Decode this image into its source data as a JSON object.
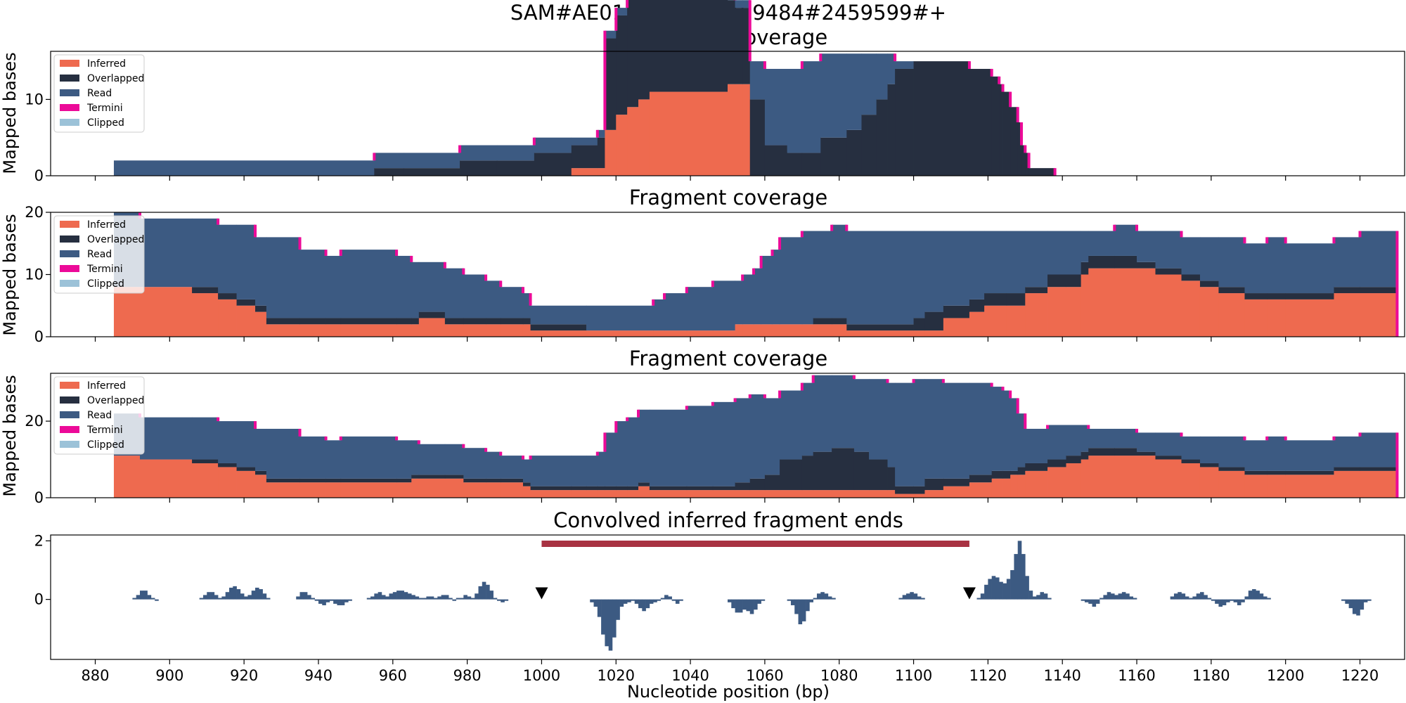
{
  "suptitle": "SAM#AE017334.2#2459484#2459599#+",
  "colors": {
    "inferred": "#ee6a4f",
    "overlapped": "#262f40",
    "read": "#3c5a82",
    "termini": "#ec0a98",
    "clipped": "#9cc2d8",
    "conv": "#3c5a82",
    "bar": "#a83242",
    "marker": "#000000"
  },
  "icons": {
    "marker": "down-triangle-marker"
  },
  "xaxis": {
    "label": "Nucleotide position (bp)",
    "range": [
      868,
      1232
    ],
    "ticks": [
      880,
      900,
      920,
      940,
      960,
      980,
      1000,
      1020,
      1040,
      1060,
      1080,
      1100,
      1120,
      1140,
      1160,
      1180,
      1200,
      1220
    ]
  },
  "chart_data": [
    {
      "type": "area",
      "title": "Fragment coverage",
      "ylabel": "Mapped bases",
      "ylim": [
        0,
        16.3
      ],
      "yticks": [
        0,
        10
      ],
      "legend": {
        "position": "top-left",
        "entries": [
          "Inferred",
          "Overlapped",
          "Read",
          "Termini",
          "Clipped"
        ]
      },
      "steps": [
        [
          885,
          0,
          0,
          2
        ],
        [
          955,
          0,
          1,
          2
        ],
        [
          963,
          0,
          1,
          2
        ],
        [
          978,
          0,
          2,
          2
        ],
        [
          988,
          0,
          2,
          2
        ],
        [
          998,
          0,
          3,
          2
        ],
        [
          1008,
          1,
          3,
          1
        ],
        [
          1015,
          1,
          4,
          1
        ],
        [
          1017,
          6,
          12,
          1
        ],
        [
          1020,
          8,
          13,
          1
        ],
        [
          1023,
          9,
          15,
          1
        ],
        [
          1026,
          10,
          14,
          2
        ],
        [
          1029,
          11,
          13,
          1
        ],
        [
          1050,
          12,
          11,
          1
        ],
        [
          1052,
          12,
          10,
          1
        ],
        [
          1054,
          12,
          10,
          1
        ],
        [
          1056,
          0,
          10,
          5
        ],
        [
          1060,
          0,
          4,
          10
        ],
        [
          1066,
          0,
          3,
          11
        ],
        [
          1070,
          0,
          3,
          12
        ],
        [
          1075,
          0,
          5,
          11
        ],
        [
          1082,
          0,
          6,
          10
        ],
        [
          1086,
          0,
          8,
          8
        ],
        [
          1090,
          0,
          10,
          6
        ],
        [
          1093,
          0,
          12,
          4
        ],
        [
          1095,
          0,
          14,
          1
        ],
        [
          1100,
          0,
          15,
          0
        ],
        [
          1115,
          0,
          14,
          0
        ],
        [
          1121,
          0,
          13,
          0
        ],
        [
          1123,
          0,
          12,
          0
        ],
        [
          1124,
          0,
          11,
          0
        ],
        [
          1126,
          0,
          9,
          0
        ],
        [
          1128,
          0,
          7,
          0
        ],
        [
          1129,
          0,
          4,
          0
        ],
        [
          1130,
          0,
          3,
          0
        ],
        [
          1131,
          0,
          1,
          0
        ],
        [
          1138,
          null,
          null,
          null
        ]
      ]
    },
    {
      "type": "area",
      "title": "Fragment coverage",
      "ylabel": "Mapped bases",
      "ylim": [
        0,
        20
      ],
      "yticks": [
        0,
        10,
        20
      ],
      "legend": {
        "position": "top-left",
        "entries": [
          "Inferred",
          "Overlapped",
          "Read",
          "Termini",
          "Clipped"
        ]
      },
      "steps": [
        [
          885,
          8,
          0,
          12
        ],
        [
          892,
          8,
          0,
          11
        ],
        [
          906,
          7,
          1,
          11
        ],
        [
          913,
          6,
          1,
          11
        ],
        [
          918,
          5,
          1,
          12
        ],
        [
          923,
          4,
          1,
          11
        ],
        [
          926,
          2,
          1,
          13
        ],
        [
          935,
          2,
          1,
          11
        ],
        [
          942,
          2,
          1,
          10
        ],
        [
          946,
          2,
          1,
          11
        ],
        [
          961,
          2,
          1,
          10
        ],
        [
          965,
          2,
          1,
          9
        ],
        [
          967,
          3,
          1,
          8
        ],
        [
          974,
          2,
          1,
          8
        ],
        [
          979,
          2,
          1,
          7
        ],
        [
          985,
          2,
          1,
          6
        ],
        [
          989,
          2,
          1,
          5
        ],
        [
          995,
          2,
          1,
          4
        ],
        [
          997,
          1,
          1,
          3
        ],
        [
          1012,
          1,
          0,
          4
        ],
        [
          1030,
          1,
          0,
          5
        ],
        [
          1033,
          1,
          0,
          6
        ],
        [
          1039,
          1,
          0,
          7
        ],
        [
          1046,
          1,
          0,
          8
        ],
        [
          1052,
          2,
          0,
          7
        ],
        [
          1054,
          2,
          0,
          8
        ],
        [
          1057,
          2,
          0,
          9
        ],
        [
          1059,
          2,
          0,
          11
        ],
        [
          1062,
          2,
          0,
          12
        ],
        [
          1064,
          2,
          0,
          14
        ],
        [
          1070,
          2,
          0,
          15
        ],
        [
          1073,
          2,
          1,
          14
        ],
        [
          1078,
          2,
          1,
          15
        ],
        [
          1082,
          1,
          1,
          15
        ],
        [
          1100,
          1,
          2,
          14
        ],
        [
          1103,
          1,
          3,
          13
        ],
        [
          1108,
          3,
          2,
          12
        ],
        [
          1115,
          4,
          2,
          11
        ],
        [
          1119,
          5,
          2,
          10
        ],
        [
          1125,
          5,
          2,
          10
        ],
        [
          1130,
          7,
          1,
          9
        ],
        [
          1136,
          8,
          2,
          7
        ],
        [
          1141,
          8,
          2,
          7
        ],
        [
          1145,
          10,
          2,
          5
        ],
        [
          1147,
          11,
          2,
          4
        ],
        [
          1154,
          11,
          2,
          5
        ],
        [
          1160,
          11,
          1,
          5
        ],
        [
          1165,
          10,
          1,
          6
        ],
        [
          1172,
          9,
          1,
          6
        ],
        [
          1177,
          8,
          1,
          7
        ],
        [
          1182,
          7,
          1,
          8
        ],
        [
          1189,
          6,
          1,
          8
        ],
        [
          1195,
          6,
          1,
          9
        ],
        [
          1200,
          6,
          1,
          8
        ],
        [
          1213,
          7,
          1,
          8
        ],
        [
          1220,
          7,
          1,
          9
        ],
        [
          1230,
          null,
          null,
          null
        ]
      ]
    },
    {
      "type": "area",
      "title": "Fragment coverage",
      "ylabel": "Mapped bases",
      "ylim": [
        0,
        32.5
      ],
      "yticks": [
        0,
        20
      ],
      "legend": {
        "position": "top-left",
        "entries": [
          "Inferred",
          "Overlapped",
          "Read",
          "Termini",
          "Clipped"
        ]
      },
      "steps": [
        [
          885,
          11,
          0,
          11
        ],
        [
          892,
          10,
          0,
          11
        ],
        [
          906,
          9,
          1,
          11
        ],
        [
          913,
          8,
          1,
          11
        ],
        [
          918,
          7,
          1,
          12
        ],
        [
          923,
          6,
          1,
          11
        ],
        [
          926,
          4,
          1,
          13
        ],
        [
          935,
          4,
          1,
          11
        ],
        [
          942,
          4,
          1,
          10
        ],
        [
          946,
          4,
          1,
          11
        ],
        [
          961,
          4,
          1,
          10
        ],
        [
          965,
          5,
          1,
          9
        ],
        [
          967,
          5,
          1,
          8
        ],
        [
          974,
          5,
          1,
          8
        ],
        [
          979,
          4,
          1,
          8
        ],
        [
          985,
          4,
          1,
          7
        ],
        [
          989,
          4,
          1,
          6
        ],
        [
          995,
          3,
          1,
          6
        ],
        [
          997,
          2,
          1,
          8
        ],
        [
          1008,
          2,
          1,
          8
        ],
        [
          1012,
          2,
          1,
          8
        ],
        [
          1015,
          2,
          1,
          9
        ],
        [
          1017,
          2,
          1,
          14
        ],
        [
          1020,
          2,
          1,
          17
        ],
        [
          1023,
          2,
          1,
          18
        ],
        [
          1026,
          3,
          1,
          19
        ],
        [
          1029,
          2,
          1,
          20
        ],
        [
          1039,
          2,
          1,
          21
        ],
        [
          1046,
          2,
          1,
          22
        ],
        [
          1052,
          2,
          2,
          22
        ],
        [
          1056,
          2,
          3,
          22
        ],
        [
          1060,
          2,
          4,
          20
        ],
        [
          1064,
          2,
          8,
          18
        ],
        [
          1070,
          2,
          9,
          19
        ],
        [
          1073,
          2,
          10,
          20
        ],
        [
          1078,
          2,
          11,
          19
        ],
        [
          1084,
          2,
          10,
          19
        ],
        [
          1088,
          2,
          8,
          21
        ],
        [
          1093,
          2,
          6,
          22
        ],
        [
          1095,
          1,
          2,
          27
        ],
        [
          1100,
          1,
          2,
          28
        ],
        [
          1103,
          2,
          3,
          26
        ],
        [
          1108,
          3,
          2,
          25
        ],
        [
          1115,
          4,
          2,
          24
        ],
        [
          1121,
          5,
          2,
          22
        ],
        [
          1124,
          5,
          2,
          21
        ],
        [
          1126,
          6,
          1,
          19
        ],
        [
          1128,
          6,
          2,
          14
        ],
        [
          1130,
          7,
          2,
          9
        ],
        [
          1136,
          8,
          2,
          9
        ],
        [
          1141,
          9,
          2,
          8
        ],
        [
          1145,
          10,
          2,
          7
        ],
        [
          1147,
          11,
          2,
          5
        ],
        [
          1154,
          11,
          2,
          5
        ],
        [
          1160,
          11,
          1,
          5
        ],
        [
          1165,
          10,
          1,
          6
        ],
        [
          1172,
          9,
          1,
          6
        ],
        [
          1177,
          8,
          1,
          7
        ],
        [
          1182,
          7,
          1,
          8
        ],
        [
          1189,
          6,
          1,
          8
        ],
        [
          1195,
          6,
          1,
          9
        ],
        [
          1200,
          6,
          1,
          8
        ],
        [
          1213,
          7,
          1,
          8
        ],
        [
          1220,
          7,
          1,
          9
        ],
        [
          1230,
          null,
          null,
          null
        ]
      ]
    },
    {
      "type": "bar",
      "title": "Convolved inferred fragment ends",
      "ylim": [
        -2.05,
        2.2
      ],
      "yticks": [
        0,
        2
      ],
      "segments": [
        {
          "x0": 890,
          "values": [
            0.05,
            0.15,
            0.3,
            0.3,
            0.15,
            0.05
          ]
        },
        {
          "x0": 896,
          "values": [
            -0.05
          ]
        },
        {
          "x0": 908,
          "values": [
            0.05,
            0.15,
            0.25,
            0.25,
            0.15,
            0.05,
            0.1,
            0.25,
            0.4,
            0.45,
            0.35,
            0.2,
            0.1,
            0.15,
            0.3,
            0.4,
            0.35,
            0.2,
            0.05
          ]
        },
        {
          "x0": 934,
          "values": [
            0.1,
            0.25,
            0.25,
            0.15,
            0.05,
            -0.05,
            -0.15,
            -0.2,
            -0.1,
            -0.05,
            -0.15,
            -0.2,
            -0.2,
            -0.1,
            -0.05
          ]
        },
        {
          "x0": 953,
          "values": [
            0.05,
            0.1,
            0.2,
            0.25,
            0.15,
            0.1,
            0.2,
            0.25,
            0.3,
            0.3,
            0.25,
            0.2,
            0.15,
            0.1,
            0.05,
            0.05,
            0.1,
            0.1,
            0.05,
            0.1,
            0.15,
            0.15,
            0.05,
            -0.05,
            0.05,
            0.05,
            0.15,
            0.1,
            0.05,
            0.2,
            0.45,
            0.6,
            0.5,
            0.3,
            0.05,
            -0.05,
            -0.1,
            -0.05
          ]
        },
        {
          "x0": 1013,
          "values": [
            -0.1,
            -0.25,
            -0.6,
            -1.2,
            -1.6,
            -1.75,
            -1.3,
            -0.7,
            -0.25,
            -0.15,
            -0.1,
            -0.05,
            -0.15,
            -0.3,
            -0.4,
            -0.3,
            -0.15,
            -0.1,
            -0.05,
            0.05,
            0.15,
            0.1,
            -0.05,
            -0.15,
            -0.05
          ]
        },
        {
          "x0": 1050,
          "values": [
            -0.1,
            -0.3,
            -0.45,
            -0.45,
            -0.35,
            -0.4,
            -0.5,
            -0.35,
            -0.15,
            -0.05
          ]
        },
        {
          "x0": 1066,
          "values": [
            -0.05,
            -0.2,
            -0.5,
            -0.85,
            -0.75,
            -0.4,
            -0.1,
            0.05,
            0.2,
            0.25,
            0.2,
            0.1,
            0.05
          ]
        },
        {
          "x0": 1096,
          "values": [
            0.05,
            0.15,
            0.2,
            0.25,
            0.2,
            0.1,
            0.05
          ]
        },
        {
          "x0": 1117,
          "values": [
            0.05,
            0.2,
            0.5,
            0.7,
            0.8,
            0.75,
            0.6,
            0.55,
            0.7,
            1.0,
            1.55,
            2.0,
            1.55,
            0.8,
            0.3,
            0.1,
            0.15,
            0.25,
            0.2,
            0.05
          ]
        },
        {
          "x0": 1145,
          "values": [
            -0.05,
            -0.1,
            -0.15,
            -0.25,
            -0.15,
            0.05,
            0.15,
            0.25,
            0.2,
            0.15,
            0.2,
            0.25,
            0.2,
            0.1,
            0.05
          ]
        },
        {
          "x0": 1169,
          "values": [
            0.1,
            0.2,
            0.25,
            0.2,
            0.1,
            0.05,
            0.1,
            0.2,
            0.25,
            0.15,
            0.05,
            -0.05,
            -0.15,
            -0.25,
            -0.2,
            -0.1,
            -0.05,
            -0.1,
            -0.2,
            -0.1,
            0.1,
            0.3,
            0.35,
            0.3,
            0.2,
            0.1,
            0.05
          ]
        },
        {
          "x0": 1215,
          "values": [
            -0.05,
            -0.15,
            -0.3,
            -0.5,
            -0.55,
            -0.35,
            -0.1,
            -0.05
          ]
        }
      ],
      "bar": {
        "x": [
          1000,
          1115
        ],
        "y": 1.9
      },
      "markers": [
        {
          "x": 1000,
          "y": 0.22
        },
        {
          "x": 1115,
          "y": 0.22
        }
      ]
    }
  ]
}
